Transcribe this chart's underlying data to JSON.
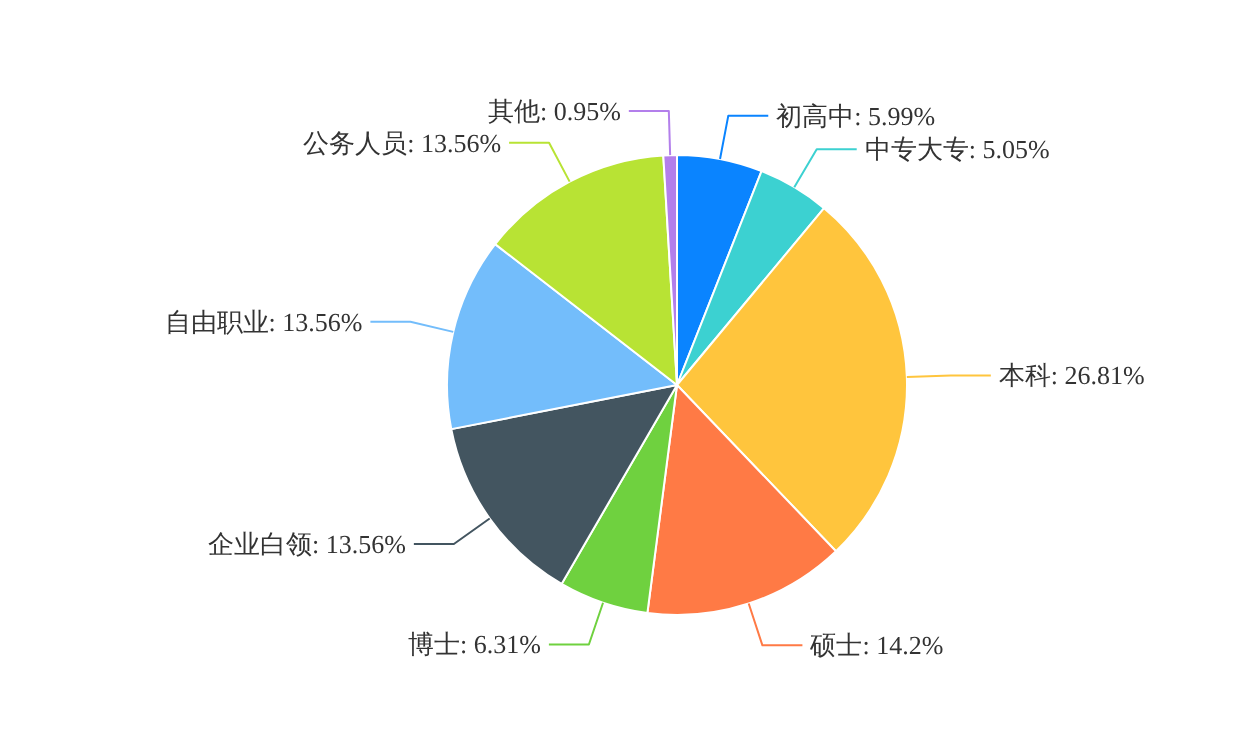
{
  "chart_data": {
    "type": "pie",
    "categories": [
      "初高中",
      "中专大专",
      "本科",
      "硕士",
      "博士",
      "企业白领",
      "自由职业",
      "公务人员",
      "其他"
    ],
    "values": [
      5.99,
      5.05,
      26.81,
      14.2,
      6.31,
      13.56,
      13.56,
      13.56,
      0.95
    ],
    "value_labels": [
      "5.99%",
      "5.05%",
      "26.81%",
      "14.2%",
      "6.31%",
      "13.56%",
      "13.56%",
      "13.56%",
      "0.95%"
    ],
    "colors": [
      "#0a84ff",
      "#3cd1d1",
      "#ffc53d",
      "#ff7a45",
      "#6fd13f",
      "#435560",
      "#73bdfb",
      "#b8e334",
      "#b37feb"
    ]
  }
}
